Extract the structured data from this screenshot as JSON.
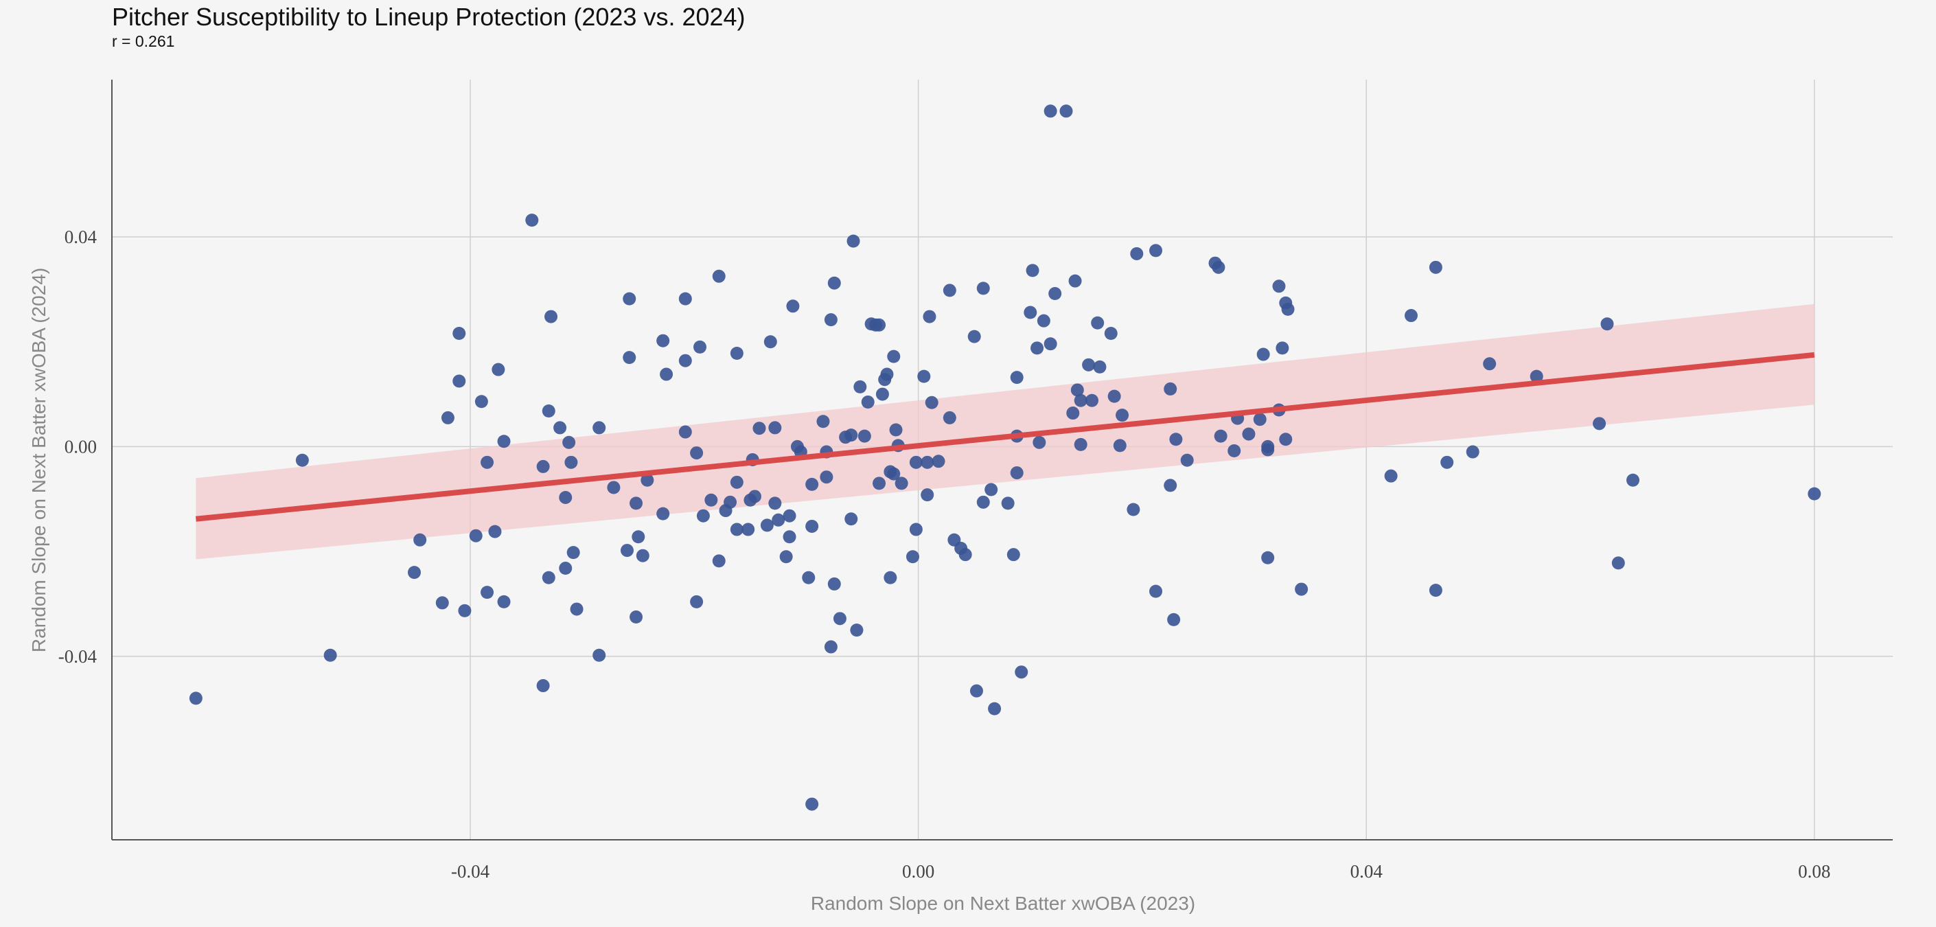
{
  "chart_data": {
    "type": "scatter",
    "title": "Pitcher Susceptibility to Lineup Protection (2023 vs. 2024)",
    "subtitle": "r = 0.261",
    "xlabel": "Random Slope on Next Batter xwOBA (2023)",
    "ylabel": "Random Slope on Next Batter xwOBA (2024)",
    "xlim": [
      -0.072,
      0.087
    ],
    "ylim": [
      -0.075,
      0.07
    ],
    "xticks": [
      -0.04,
      0.0,
      0.04,
      0.08
    ],
    "xtick_labels": [
      "-0.04",
      "0.00",
      "0.04",
      "0.08"
    ],
    "yticks": [
      -0.04,
      0.0,
      0.04
    ],
    "ytick_labels": [
      "-0.04",
      "0.00",
      "0.04"
    ],
    "grid": true,
    "colors": {
      "points": "#3a5494",
      "regression_line": "#d94b4b",
      "confidence_band": "#f2c9cd"
    },
    "regression": {
      "x": [
        -0.0645,
        0.08
      ],
      "y": [
        -0.0138,
        0.0175
      ]
    },
    "confidence_band": {
      "x": [
        -0.0645,
        0.08
      ],
      "lower": [
        -0.0215,
        0.008
      ],
      "upper": [
        -0.006,
        0.0272
      ]
    },
    "points": [
      [
        -0.0645,
        -0.048
      ],
      [
        -0.055,
        -0.0026
      ],
      [
        -0.0525,
        -0.0398
      ],
      [
        -0.045,
        -0.024
      ],
      [
        -0.0445,
        -0.0178
      ],
      [
        -0.0425,
        -0.0298
      ],
      [
        -0.042,
        0.0055
      ],
      [
        -0.041,
        0.0216
      ],
      [
        -0.041,
        0.0125
      ],
      [
        -0.0405,
        -0.0313
      ],
      [
        -0.0395,
        -0.017
      ],
      [
        -0.039,
        0.0086
      ],
      [
        -0.0385,
        -0.003
      ],
      [
        -0.0385,
        -0.0278
      ],
      [
        -0.0378,
        -0.0162
      ],
      [
        -0.0375,
        0.0147
      ],
      [
        -0.037,
        -0.0296
      ],
      [
        -0.037,
        0.001
      ],
      [
        -0.0345,
        0.0432
      ],
      [
        -0.0335,
        -0.0456
      ],
      [
        -0.0335,
        -0.0038
      ],
      [
        -0.033,
        0.0068
      ],
      [
        -0.033,
        -0.025
      ],
      [
        -0.0328,
        0.0248
      ],
      [
        -0.032,
        0.0036
      ],
      [
        -0.0315,
        -0.0097
      ],
      [
        -0.0315,
        -0.0232
      ],
      [
        -0.0312,
        0.0008
      ],
      [
        -0.031,
        -0.003
      ],
      [
        -0.0308,
        -0.0202
      ],
      [
        -0.0305,
        -0.031
      ],
      [
        -0.0285,
        0.0036
      ],
      [
        -0.0285,
        -0.0398
      ],
      [
        -0.0272,
        -0.0078
      ],
      [
        -0.026,
        -0.0198
      ],
      [
        -0.0258,
        0.0282
      ],
      [
        -0.0258,
        0.017
      ],
      [
        -0.0252,
        -0.0108
      ],
      [
        -0.0252,
        -0.0325
      ],
      [
        -0.025,
        -0.0172
      ],
      [
        -0.0246,
        -0.0208
      ],
      [
        -0.0242,
        -0.0064
      ],
      [
        -0.0228,
        0.0202
      ],
      [
        -0.0228,
        -0.0128
      ],
      [
        -0.0225,
        0.0138
      ],
      [
        -0.0208,
        0.0282
      ],
      [
        -0.0208,
        0.0028
      ],
      [
        -0.0208,
        0.0164
      ],
      [
        -0.0198,
        -0.0296
      ],
      [
        -0.0198,
        -0.0012
      ],
      [
        -0.0195,
        0.019
      ],
      [
        -0.0192,
        -0.0132
      ],
      [
        -0.0185,
        -0.0102
      ],
      [
        -0.0178,
        0.0325
      ],
      [
        -0.0178,
        -0.0218
      ],
      [
        -0.0172,
        -0.0122
      ],
      [
        -0.0168,
        -0.0106
      ],
      [
        -0.0162,
        0.0178
      ],
      [
        -0.0162,
        -0.0158
      ],
      [
        -0.0162,
        -0.0068
      ],
      [
        -0.0152,
        -0.0158
      ],
      [
        -0.015,
        -0.0102
      ],
      [
        -0.0148,
        -0.0025
      ],
      [
        -0.0146,
        -0.0095
      ],
      [
        -0.0142,
        0.0035
      ],
      [
        -0.0135,
        -0.015
      ],
      [
        -0.0132,
        0.02
      ],
      [
        -0.0128,
        -0.0108
      ],
      [
        -0.0128,
        0.0036
      ],
      [
        -0.0125,
        -0.014
      ],
      [
        -0.0118,
        -0.021
      ],
      [
        -0.0115,
        -0.0172
      ],
      [
        -0.0115,
        -0.0132
      ],
      [
        -0.0112,
        0.0268
      ],
      [
        -0.0108,
        0.0
      ],
      [
        -0.0105,
        -0.001
      ],
      [
        -0.0098,
        -0.025
      ],
      [
        -0.0095,
        -0.0072
      ],
      [
        -0.0095,
        -0.0152
      ],
      [
        -0.0095,
        -0.0682
      ],
      [
        -0.0085,
        0.0048
      ],
      [
        -0.0082,
        -0.001
      ],
      [
        -0.0082,
        -0.0058
      ],
      [
        -0.0078,
        -0.0382
      ],
      [
        -0.0078,
        0.0242
      ],
      [
        -0.0075,
        0.0312
      ],
      [
        -0.0075,
        -0.0262
      ],
      [
        -0.007,
        -0.0328
      ],
      [
        -0.0065,
        0.0018
      ],
      [
        -0.006,
        0.0022
      ],
      [
        -0.006,
        -0.0138
      ],
      [
        -0.0058,
        0.0392
      ],
      [
        -0.0055,
        -0.035
      ],
      [
        -0.0052,
        0.0114
      ],
      [
        -0.0048,
        0.002
      ],
      [
        -0.0045,
        0.0085
      ],
      [
        -0.0042,
        0.0234
      ],
      [
        -0.0038,
        0.0232
      ],
      [
        -0.0035,
        0.0232
      ],
      [
        -0.0035,
        -0.007
      ],
      [
        -0.0032,
        0.01
      ],
      [
        -0.003,
        0.0128
      ],
      [
        -0.0028,
        0.0138
      ],
      [
        -0.0025,
        -0.0048
      ],
      [
        -0.0025,
        -0.025
      ],
      [
        -0.0022,
        -0.0052
      ],
      [
        -0.0022,
        0.0172
      ],
      [
        -0.002,
        0.0032
      ],
      [
        -0.0018,
        0.0002
      ],
      [
        -0.0015,
        -0.007
      ],
      [
        -0.0005,
        -0.021
      ],
      [
        -0.0002,
        -0.003
      ],
      [
        -0.0002,
        -0.0158
      ],
      [
        0.0005,
        0.0134
      ],
      [
        0.0008,
        -0.0092
      ],
      [
        0.0008,
        -0.003
      ],
      [
        0.001,
        0.0248
      ],
      [
        0.0012,
        0.0084
      ],
      [
        0.0018,
        -0.0028
      ],
      [
        0.0028,
        0.0298
      ],
      [
        0.0028,
        0.0055
      ],
      [
        0.0032,
        -0.0178
      ],
      [
        0.0038,
        -0.0194
      ],
      [
        0.0042,
        -0.0206
      ],
      [
        0.005,
        0.021
      ],
      [
        0.0052,
        -0.0466
      ],
      [
        0.0058,
        -0.0106
      ],
      [
        0.0058,
        0.0302
      ],
      [
        0.0065,
        -0.0082
      ],
      [
        0.0068,
        -0.05
      ],
      [
        0.008,
        -0.0108
      ],
      [
        0.0085,
        -0.0206
      ],
      [
        0.0088,
        -0.005
      ],
      [
        0.0088,
        0.002
      ],
      [
        0.0088,
        0.0132
      ],
      [
        0.0092,
        -0.043
      ],
      [
        0.01,
        0.0256
      ],
      [
        0.0102,
        0.0336
      ],
      [
        0.0106,
        0.0188
      ],
      [
        0.0108,
        0.0008
      ],
      [
        0.0112,
        0.024
      ],
      [
        0.0118,
        0.0196
      ],
      [
        0.0118,
        0.064
      ],
      [
        0.0122,
        0.0292
      ],
      [
        0.0132,
        0.064
      ],
      [
        0.0138,
        0.0064
      ],
      [
        0.014,
        0.0316
      ],
      [
        0.0142,
        0.0108
      ],
      [
        0.0145,
        0.0088
      ],
      [
        0.0145,
        0.0004
      ],
      [
        0.0152,
        0.0156
      ],
      [
        0.0155,
        0.0088
      ],
      [
        0.016,
        0.0236
      ],
      [
        0.0162,
        0.0152
      ],
      [
        0.0172,
        0.0216
      ],
      [
        0.0175,
        0.0096
      ],
      [
        0.018,
        0.0002
      ],
      [
        0.0182,
        0.006
      ],
      [
        0.0192,
        -0.012
      ],
      [
        0.0195,
        0.0368
      ],
      [
        0.0212,
        0.0374
      ],
      [
        0.0212,
        -0.0276
      ],
      [
        0.0225,
        0.011
      ],
      [
        0.0225,
        -0.0074
      ],
      [
        0.0228,
        -0.033
      ],
      [
        0.023,
        0.0014
      ],
      [
        0.024,
        -0.0026
      ],
      [
        0.0265,
        0.035
      ],
      [
        0.0268,
        0.0342
      ],
      [
        0.027,
        0.002
      ],
      [
        0.0282,
        -0.0008
      ],
      [
        0.0285,
        0.0054
      ],
      [
        0.0295,
        0.0024
      ],
      [
        0.0305,
        0.0052
      ],
      [
        0.0308,
        0.0176
      ],
      [
        0.0312,
        -0.0212
      ],
      [
        0.0312,
        0.0
      ],
      [
        0.0312,
        -0.0006
      ],
      [
        0.0322,
        0.0306
      ],
      [
        0.0322,
        0.007
      ],
      [
        0.0325,
        0.0188
      ],
      [
        0.0328,
        0.0014
      ],
      [
        0.0328,
        0.0274
      ],
      [
        0.033,
        0.0262
      ],
      [
        0.0342,
        -0.0272
      ],
      [
        0.0422,
        -0.0056
      ],
      [
        0.044,
        0.025
      ],
      [
        0.0462,
        0.0342
      ],
      [
        0.0462,
        -0.0274
      ],
      [
        0.0472,
        -0.003
      ],
      [
        0.0495,
        -0.001
      ],
      [
        0.051,
        0.0158
      ],
      [
        0.0552,
        0.0134
      ],
      [
        0.0608,
        0.0044
      ],
      [
        0.0615,
        0.0234
      ],
      [
        0.0625,
        -0.0222
      ],
      [
        0.0638,
        -0.0064
      ],
      [
        0.08,
        -0.009
      ]
    ]
  }
}
